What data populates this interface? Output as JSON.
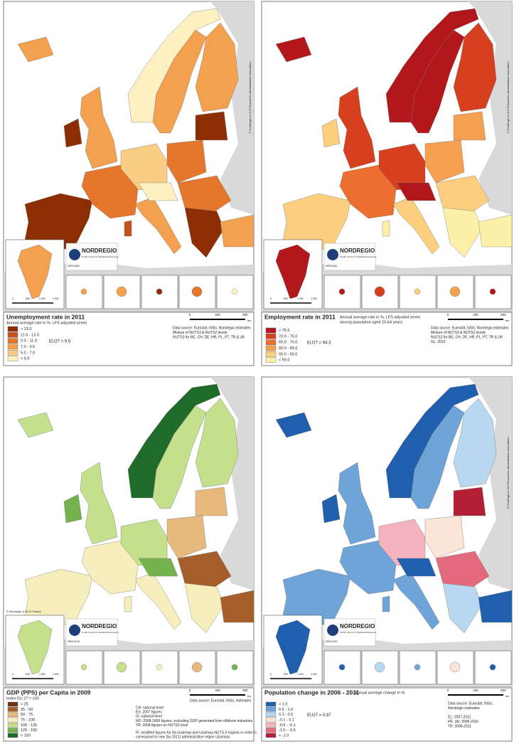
{
  "panels": [
    {
      "title": "Unemployment rate in 2011",
      "title_color": "#111111",
      "subtitle": [
        "Annual average rate in %, LFS adjusted series"
      ],
      "legend": [
        {
          "label": "> 13.0",
          "color": "#8c2d04"
        },
        {
          "label": "11.0 - 13.0",
          "color": "#c4501a"
        },
        {
          "label": "9.0 - 11.0",
          "color": "#e6762b"
        },
        {
          "label": "7.0 - 9.0",
          "color": "#f3a14e"
        },
        {
          "label": "5.0 - 7.0",
          "color": "#f9cd86"
        },
        {
          "label": "< 5.0",
          "color": "#fdf1c2"
        }
      ],
      "eu27": "EU27 = 9.6",
      "notes": [
        "Data source: Eurostat, NSIs; Nordregio estimates",
        "Mixture of NUTS3 & NUTS2 levels:",
        "NUTS2 for BE, CH, DE, HR, PL, PT, TR & UK"
      ],
      "scale": [
        "0",
        "400",
        "800",
        "km"
      ],
      "inset_scale": [
        "0",
        "500",
        "1 000",
        "1 500"
      ],
      "logo": "NORDREGIO",
      "logo_sub": "Nordic Centre for Spatial Development",
      "map_id": "NR01180",
      "copyright": "© Nordregio & NLS Finland for administrative boundaries"
    },
    {
      "title": "Employment rate in 2011",
      "title_color": "#8b1a10",
      "subtitle": [
        "Annual average rate in %, LFS adjusted series",
        "among population aged 15-64 years"
      ],
      "legend": [
        {
          "label": "> 75.0",
          "color": "#b2181b"
        },
        {
          "label": "70.0 - 75.0",
          "color": "#d7401f"
        },
        {
          "label": "65.0 - 70.0",
          "color": "#ec6f2f"
        },
        {
          "label": "60.0 - 65.0",
          "color": "#f5a050"
        },
        {
          "label": "55.0 - 60.0",
          "color": "#fbcf7e"
        },
        {
          "label": "< 55.0",
          "color": "#fdf0a8"
        }
      ],
      "eu27": "EU27 = 64.3",
      "notes": [
        "Data source: Eurostat, NSIs; Nordregio estimates",
        "Mixture of NUTS3 & NUTS2 levels:",
        "NUTS2 for BE, CH, DE, HR, PL, PT, TR & UK",
        "GL: 2010"
      ],
      "scale": [
        "0",
        "400",
        "800",
        "km"
      ],
      "inset_scale": [
        "0",
        "500",
        "1 000",
        "1 500"
      ],
      "logo": "NORDREGIO",
      "logo_sub": "Nordic Centre for Spatial Development",
      "map_id": "NR01181",
      "copyright": "© Nordregio & NLS Finland for administrative boundaries"
    },
    {
      "title": "GDP (PPS) per Capita in 2009",
      "title_color": "#111111",
      "subtitle": [
        "Index EU 27 = 100"
      ],
      "legend": [
        {
          "label": "< 25",
          "color": "#6b3410"
        },
        {
          "label": "25 - 50",
          "color": "#a65f2a"
        },
        {
          "label": "50 - 75",
          "color": "#e7b97c"
        },
        {
          "label": "75 - 100",
          "color": "#f6efbd"
        },
        {
          "label": "100 - 125",
          "color": "#c4e08d"
        },
        {
          "label": "125 - 150",
          "color": "#73b24c"
        },
        {
          "label": "> 150",
          "color": "#1f6b2a"
        }
      ],
      "eu27": "",
      "notes": [
        "CH: national level",
        "ES: 2007 figures",
        "IS: national level",
        "NO: 2008-2009 figures, excluding GDP generated from offshore industries",
        "TR: 2008 figures on NUTS2 level",
        "FI: modified figures for Itä-Uusimaa and Uusimaa NUTS 3 regions in order to",
        "correspond to new (by 2011) administrative region Uusimaa"
      ],
      "source": "Data source: Eurostat, NSIs, estimates",
      "scale": [
        "0",
        "400",
        "800",
        "km"
      ],
      "inset_scale": [
        "0",
        "500",
        "1 000",
        "1 500"
      ],
      "logo": "NORDREGIO",
      "logo_sub": "Nordic Centre for Spatial Development",
      "map_id": "NR01243",
      "copyright": "© Nordregio & NLS Finland"
    },
    {
      "title": "Population change in 2006 - 2011",
      "title_color": "#8b1a10",
      "subtitle": [
        "- Annual average change in %"
      ],
      "legend": [
        {
          "label": "> 1.0",
          "color": "#1f5fae"
        },
        {
          "label": "0.5 - 1.0",
          "color": "#6fa4d9"
        },
        {
          "label": "0.1 - 0.5",
          "color": "#b7d8ef"
        },
        {
          "label": "-0.1 - 0.1",
          "color": "#fbe5d6"
        },
        {
          "label": "-0.5 - -0.1",
          "color": "#f4b3bf"
        },
        {
          "label": "-1.0 - -0.5",
          "color": "#e36a7c"
        },
        {
          "label": "< -1.0",
          "color": "#b21f35"
        }
      ],
      "eu27": "EU27 = 0.37",
      "notes": [
        "Data source: Eurostat, NSIs;",
        "Nordregio estimates",
        "EL: 2007-2011",
        "FR, UK: 2006-2010",
        "TR: 2006-2011"
      ],
      "scale": [
        "0",
        "400",
        "800",
        "km"
      ],
      "inset_scale": [
        "0",
        "500",
        "1 000",
        "1 500"
      ],
      "logo": "NORDREGIO",
      "logo_sub": "Nordic Centre for Spatial Development",
      "map_id": "NR01193",
      "copyright": "© Nordregio & NLS Finland for administrative boundaries"
    }
  ]
}
